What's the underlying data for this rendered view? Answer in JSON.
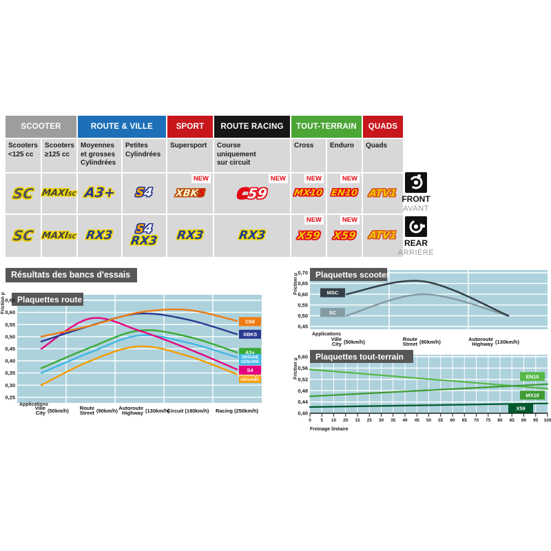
{
  "page": {
    "title_bar": "Résultats des bancs d'essais"
  },
  "colors": {
    "plot_bg": "#aed2dc",
    "grid": "#ffffff",
    "panel_dark": "#575756",
    "cell_bg": "#d8d8d8",
    "new_red": "#e30613",
    "scooter_gray": "#9d9d9c",
    "route_blue": "#1d70b7",
    "sport_red": "#c8161d",
    "racing_black": "#161615",
    "terrain_green": "#4ba635",
    "quads_red": "#c8161d"
  },
  "table": {
    "groups": [
      {
        "label": "SCOOTER",
        "color": "#9d9d9c",
        "span": 2
      },
      {
        "label": "ROUTE & VILLE",
        "color": "#1d70b7",
        "span": 2
      },
      {
        "label": "SPORT",
        "color": "#c8161d",
        "span": 1
      },
      {
        "label": "ROUTE RACING",
        "color": "#161615",
        "span": 1
      },
      {
        "label": "TOUT-TERRAIN",
        "color": "#4ba635",
        "span": 2
      },
      {
        "label": "QUADS",
        "color": "#c8161d",
        "span": 1
      }
    ],
    "subheaders": [
      "Scooters\n<125 cc",
      "Scooters\n≥125 cc",
      "Moyennes\net grosses\nCylindrées",
      "Petites\nCylindrées",
      "Supersport",
      "Course\nuniquement\nsur circuit",
      "Cross",
      "Enduro",
      "Quads"
    ],
    "new_label": "NEW",
    "front": {
      "side_label_en": "FRONT",
      "side_label_fr": "AVANT",
      "cells": [
        {
          "badges": [
            "SC"
          ]
        },
        {
          "badges": [
            "MAXISC"
          ]
        },
        {
          "badges": [
            "A3PLUS"
          ]
        },
        {
          "badges": [
            "S4"
          ]
        },
        {
          "badges": [
            "XBK5"
          ],
          "new": true
        },
        {
          "badges": [
            "C59"
          ],
          "new": true
        },
        {
          "badges": [
            "MX10"
          ],
          "new": true
        },
        {
          "badges": [
            "EN10"
          ],
          "new": true
        },
        {
          "badges": [
            "ATV1"
          ]
        }
      ]
    },
    "rear": {
      "side_label_en": "REAR",
      "side_label_fr": "ARRIÈRE",
      "cells": [
        {
          "badges": [
            "SC"
          ]
        },
        {
          "badges": [
            "MAXISC"
          ]
        },
        {
          "badges": [
            "RX3"
          ]
        },
        {
          "badges": [
            "S4",
            "RX3"
          ]
        },
        {
          "badges": [
            "RX3"
          ]
        },
        {
          "badges": [
            "RX3"
          ]
        },
        {
          "badges": [
            "X59"
          ],
          "new": true
        },
        {
          "badges": [
            "X59"
          ],
          "new": true
        },
        {
          "badges": [
            "ATV1"
          ]
        }
      ]
    },
    "badge_styles": {
      "SC": {
        "parts": [
          {
            "t": "SC",
            "c": "#54565a"
          }
        ],
        "outline": "#f0d400",
        "size": 20
      },
      "MAXISC": {
        "parts": [
          {
            "t": "MAXI",
            "c": "#3f3f3e"
          },
          {
            "t": "SC",
            "c": "#3f3f3e",
            "small": true
          }
        ],
        "outline": "#f0d400",
        "size": 13
      },
      "A3PLUS": {
        "parts": [
          {
            "t": "A3+",
            "c": "#2b3990"
          }
        ],
        "outline": "#f0d400",
        "size": 19
      },
      "S4": {
        "parts": [
          {
            "t": "S",
            "c": "#f7a600"
          },
          {
            "t": "4",
            "c": "#ffffff"
          }
        ],
        "outline": "#2b3990",
        "size": 17
      },
      "XBK5": {
        "parts": [
          {
            "t": "XBK",
            "c": "#fdf6d8"
          },
          {
            "t": "5",
            "c": "#e30613"
          }
        ],
        "outline": "#b94700",
        "size": 14
      },
      "C59": {
        "parts": [
          {
            "t": "C",
            "c": "#e30613"
          },
          {
            "t": "59",
            "c": "#ffffff"
          }
        ],
        "outline": "#e30613",
        "size": 20
      },
      "MX10": {
        "parts": [
          {
            "t": "MX10",
            "c": "#f4c400"
          }
        ],
        "outline": "#e30613",
        "size": 13
      },
      "EN10": {
        "parts": [
          {
            "t": "EN10",
            "c": "#f4c400"
          }
        ],
        "outline": "#e30613",
        "size": 13
      },
      "ATV1": {
        "parts": [
          {
            "t": "ATV1",
            "c": "#f4c400"
          }
        ],
        "outline": "#d9531e",
        "size": 14
      },
      "RX3": {
        "parts": [
          {
            "t": "RX3",
            "c": "#1f3d8c"
          }
        ],
        "outline": "#f0d400",
        "size": 17
      },
      "X59": {
        "parts": [
          {
            "t": "X59",
            "c": "#f4c400"
          }
        ],
        "outline": "#e30613",
        "size": 15
      }
    }
  },
  "chart_data": [
    {
      "id": "route",
      "type": "line",
      "title": "Plaquettes route",
      "ylabel": "Friction µ",
      "xlabel": "Applications",
      "ylim": [
        0.25,
        0.65
      ],
      "grid": true,
      "legend_position": "right",
      "yticks": [
        0.65,
        0.6,
        0.55,
        0.5,
        0.45,
        0.4,
        0.35,
        0.3,
        0.25
      ],
      "ytick_labels": [
        "0,65",
        "0,60",
        "0,55",
        "0,50",
        "0,45",
        "0,40",
        "0,35",
        "0,30",
        "0,25"
      ],
      "categories": [
        {
          "fr": "Ville",
          "en": "City",
          "speed": "(50km/h)"
        },
        {
          "fr": "Route",
          "en": "Street",
          "speed": "(90km/h)"
        },
        {
          "fr": "Autoroute",
          "en": "Highway",
          "speed": "(130km/h)"
        },
        {
          "fr": "Circuit",
          "en": "",
          "speed": "(180km/h)"
        },
        {
          "fr": "Racing",
          "en": "",
          "speed": "(250km/h)"
        }
      ],
      "series": [
        {
          "name": "A3+",
          "color": "#3aaa35",
          "values": [
            0.37,
            0.455,
            0.525,
            0.5,
            0.435
          ],
          "label_lines": [
            "A3+"
          ],
          "label_y": 0.435
        },
        {
          "name": "ORIGINE GENUINE",
          "color": "#41b6e6",
          "values": [
            0.35,
            0.435,
            0.505,
            0.475,
            0.415
          ],
          "label_lines": [
            "ORIGINE",
            "GENUINE"
          ],
          "label_y": 0.406
        },
        {
          "name": "ORGANIQUE ORGANIC",
          "color": "#f59c00",
          "values": [
            0.3,
            0.4,
            0.46,
            0.42,
            0.345
          ],
          "label_lines": [
            "ORGANIQUE",
            "ORGANIC"
          ],
          "label_y": 0.332
        },
        {
          "name": "S4",
          "color": "#e6007e",
          "values": [
            0.45,
            0.575,
            0.525,
            0.45,
            0.365
          ],
          "label_lines": [
            "S4"
          ],
          "label_y": 0.362
        },
        {
          "name": "XBK5",
          "color": "#2b3990",
          "values": [
            0.48,
            0.545,
            0.595,
            0.57,
            0.51
          ],
          "label_lines": [
            "XBK5"
          ],
          "label_y": 0.51
        },
        {
          "name": "C59",
          "color": "#ef7b10",
          "values": [
            0.5,
            0.545,
            0.6,
            0.61,
            0.565
          ],
          "label_lines": [
            "C59"
          ],
          "label_y": 0.562
        }
      ]
    },
    {
      "id": "scooter",
      "type": "line",
      "title": "Plaquettes scooter",
      "ylabel": "Friction µ",
      "xlabel": "Applications",
      "ylim": [
        0.45,
        0.7
      ],
      "grid": true,
      "legend_position": "left",
      "yticks": [
        0.7,
        0.65,
        0.6,
        0.55,
        0.5,
        0.45
      ],
      "ytick_labels": [
        "0,70",
        "0,65",
        "0,60",
        "0,55",
        "0,50",
        "0,45"
      ],
      "categories": [
        {
          "fr": "Ville",
          "en": "City",
          "speed": "(50km/h)"
        },
        {
          "fr": "Route",
          "en": "Street",
          "speed": "(90km/h)"
        },
        {
          "fr": "Autoroute",
          "en": "Highway",
          "speed": "(130km/h)"
        }
      ],
      "series": [
        {
          "name": "SC",
          "color": "#859ba4",
          "values": [
            0.5,
            0.6,
            0.5
          ],
          "label_lines": [
            "SC"
          ],
          "label_y": 0.515,
          "label_side": "left"
        },
        {
          "name": "MSC",
          "color": "#333f48",
          "values": [
            0.6,
            0.66,
            0.5
          ],
          "label_lines": [
            "MSC"
          ],
          "label_y": 0.607,
          "label_side": "left"
        }
      ]
    },
    {
      "id": "tout_terrain",
      "type": "line",
      "title": "Plaquettes tout-terrain",
      "ylabel": "Friction µ",
      "xlabel": "Freinage linéaire",
      "ylim": [
        0.4,
        0.6
      ],
      "grid": true,
      "legend_position": "right",
      "yticks": [
        0.6,
        0.56,
        0.52,
        0.48,
        0.44,
        0.4
      ],
      "ytick_labels": [
        "0,60",
        "0,56",
        "0,52",
        "0,48",
        "0,44",
        "0,40"
      ],
      "x_range": [
        0,
        100
      ],
      "xtick_labels": [
        "0",
        "5",
        "10",
        "20",
        "15",
        "25",
        "30",
        "35",
        "40",
        "45",
        "50",
        "55",
        "60",
        "65",
        "70",
        "75",
        "80",
        "85",
        "90",
        "95",
        "100"
      ],
      "series": [
        {
          "name": "EN10",
          "color": "#57b947",
          "values": [
            [
              0,
              0.555
            ],
            [
              100,
              0.487
            ]
          ],
          "label_lines": [
            "EN10"
          ],
          "label_y": 0.53
        },
        {
          "name": "MX10",
          "color": "#3f9c35",
          "values": [
            [
              0,
              0.46
            ],
            [
              100,
              0.503
            ]
          ],
          "label_lines": [
            "MX10"
          ],
          "label_y": 0.464
        },
        {
          "name": "X59",
          "color": "#00592c",
          "values": [
            [
              0,
              0.422
            ],
            [
              100,
              0.435
            ]
          ],
          "label_lines": [
            "X59"
          ],
          "label_y": 0.417
        }
      ]
    }
  ]
}
